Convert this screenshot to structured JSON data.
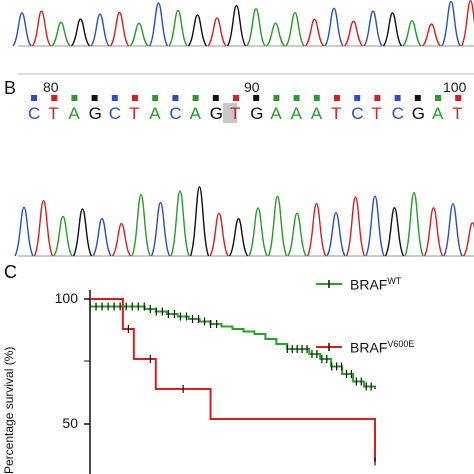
{
  "panel_b": {
    "letter": "B",
    "positions": [
      "80",
      "90",
      "100"
    ],
    "sequence": [
      "C",
      "T",
      "A",
      "G",
      "C",
      "T",
      "A",
      "C",
      "A",
      "G",
      "T",
      "G",
      "A",
      "A",
      "A",
      "T",
      "C",
      "T",
      "C",
      "G",
      "A",
      "T"
    ],
    "highlight_index": 10,
    "base_colors": {
      "A": "#2a9a2a",
      "C": "#2a4ec8",
      "G": "#111111",
      "T": "#d42020"
    }
  },
  "panel_c": {
    "letter": "C",
    "ylabel": "Percentage survival (%)",
    "yticks": [
      "100",
      "50"
    ]
  },
  "chart_data": {
    "type": "line",
    "title": "",
    "xlabel": "",
    "ylabel": "Percentage survival (%)",
    "ylim": [
      25,
      105
    ],
    "series": [
      {
        "name": "BRAF^WT",
        "color": "#2aa02a",
        "x": [
          0,
          5,
          6,
          7,
          8,
          9,
          10,
          11,
          12,
          13,
          14,
          15,
          16,
          17,
          18,
          20,
          21,
          22,
          23,
          24,
          25,
          26
        ],
        "y": [
          97,
          96,
          95,
          94,
          93,
          92,
          91,
          90,
          89,
          88,
          87,
          86,
          84,
          82,
          80,
          78,
          76,
          73,
          70,
          67,
          65,
          64
        ]
      },
      {
        "name": "BRAF^V600E",
        "color": "#d42020",
        "x": [
          0,
          3,
          4,
          6,
          11,
          26
        ],
        "y": [
          100,
          88,
          76,
          64,
          52,
          35
        ]
      }
    ]
  },
  "legend": {
    "wt_base": "BRAF",
    "wt_sup": "WT",
    "mut_base": "BRAF",
    "mut_sup": "V600E"
  }
}
